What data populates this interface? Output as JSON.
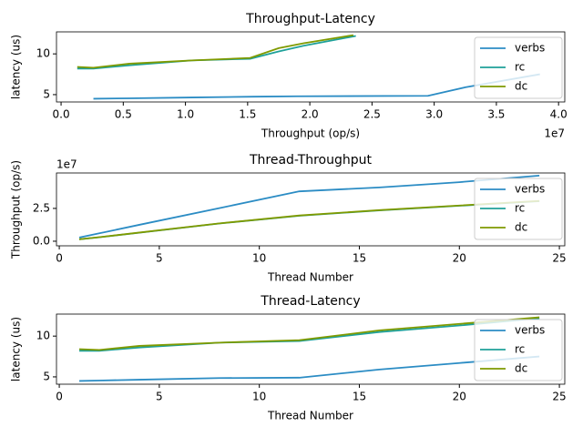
{
  "chart_data": [
    {
      "type": "line",
      "title": "Throughput-Latency",
      "xlabel": "Throughput (op/s)",
      "ylabel": "latency (us)",
      "x_offset_label": "1e7",
      "xlim": [
        -0.037,
        4.05
      ],
      "ylim": [
        4.1,
        12.7
      ],
      "xticks": [
        {
          "value": 0,
          "label": "0.0"
        },
        {
          "value": 0.5,
          "label": "0.5"
        },
        {
          "value": 1,
          "label": "1.0"
        },
        {
          "value": 1.5,
          "label": "1.5"
        },
        {
          "value": 2,
          "label": "2.0"
        },
        {
          "value": 2.5,
          "label": "2.5"
        },
        {
          "value": 3,
          "label": "3.0"
        },
        {
          "value": 3.5,
          "label": "3.5"
        },
        {
          "value": 4,
          "label": "4.0"
        }
      ],
      "yticks": [
        5,
        10
      ],
      "legend": "upper right",
      "series": [
        {
          "name": "verbs",
          "color": "#2b8cc4",
          "x": [
            0.26,
            0.55,
            1.05,
            1.55,
            1.9,
            2.95,
            3.25,
            3.85
          ],
          "values": [
            4.5,
            4.55,
            4.65,
            4.75,
            4.8,
            4.85,
            5.9,
            7.5
          ]
        },
        {
          "name": "rc",
          "color": "#1fa19a",
          "x": [
            0.13,
            0.26,
            0.55,
            1.05,
            1.52,
            1.75,
            1.95,
            2.37
          ],
          "values": [
            8.2,
            8.2,
            8.6,
            9.2,
            9.4,
            10.3,
            11.0,
            12.2
          ]
        },
        {
          "name": "dc",
          "color": "#7f9a00",
          "x": [
            0.13,
            0.26,
            0.55,
            1.05,
            1.52,
            1.75,
            1.95,
            2.35
          ],
          "values": [
            8.4,
            8.3,
            8.8,
            9.2,
            9.5,
            10.7,
            11.3,
            12.3
          ]
        }
      ]
    },
    {
      "type": "line",
      "title": "Thread-Throughput",
      "xlabel": "Thread Number",
      "ylabel": "Throughput (op/s)",
      "y_offset_label": "1e7",
      "xlim": [
        -0.14,
        25.27
      ],
      "ylim": [
        -0.35,
        5.2
      ],
      "xticks": [
        0,
        5,
        10,
        15,
        20,
        25
      ],
      "yticks": [
        {
          "value": 0,
          "label": "0.0"
        },
        {
          "value": 2.5,
          "label": "2.5"
        }
      ],
      "legend": "upper right",
      "x": [
        1,
        2,
        4,
        8,
        12,
        16,
        20,
        24
      ],
      "series": [
        {
          "name": "verbs",
          "color": "#2b8cc4",
          "values": [
            0.28,
            0.6,
            1.25,
            2.52,
            3.8,
            4.1,
            4.5,
            5.0
          ]
        },
        {
          "name": "rc",
          "color": "#1fa19a",
          "values": [
            0.15,
            0.3,
            0.65,
            1.35,
            1.94,
            2.35,
            2.7,
            3.05
          ]
        },
        {
          "name": "dc",
          "color": "#7f9a00",
          "values": [
            0.15,
            0.31,
            0.66,
            1.36,
            1.96,
            2.37,
            2.72,
            3.07
          ]
        }
      ]
    },
    {
      "type": "line",
      "title": "Thread-Latency",
      "xlabel": "Thread Number",
      "ylabel": "latency (us)",
      "xlim": [
        -0.14,
        25.27
      ],
      "ylim": [
        4.1,
        12.7
      ],
      "xticks": [
        0,
        5,
        10,
        15,
        20,
        25
      ],
      "yticks": [
        5,
        10
      ],
      "legend": "upper right",
      "x": [
        1,
        2,
        4,
        8,
        12,
        16,
        20,
        24
      ],
      "series": [
        {
          "name": "verbs",
          "color": "#2b8cc4",
          "values": [
            4.5,
            4.55,
            4.65,
            4.85,
            4.9,
            5.9,
            6.7,
            7.5
          ]
        },
        {
          "name": "rc",
          "color": "#1fa19a",
          "values": [
            8.2,
            8.2,
            8.6,
            9.2,
            9.4,
            10.5,
            11.3,
            12.2
          ]
        },
        {
          "name": "dc",
          "color": "#7f9a00",
          "values": [
            8.4,
            8.3,
            8.8,
            9.2,
            9.5,
            10.7,
            11.5,
            12.3
          ]
        }
      ]
    }
  ]
}
